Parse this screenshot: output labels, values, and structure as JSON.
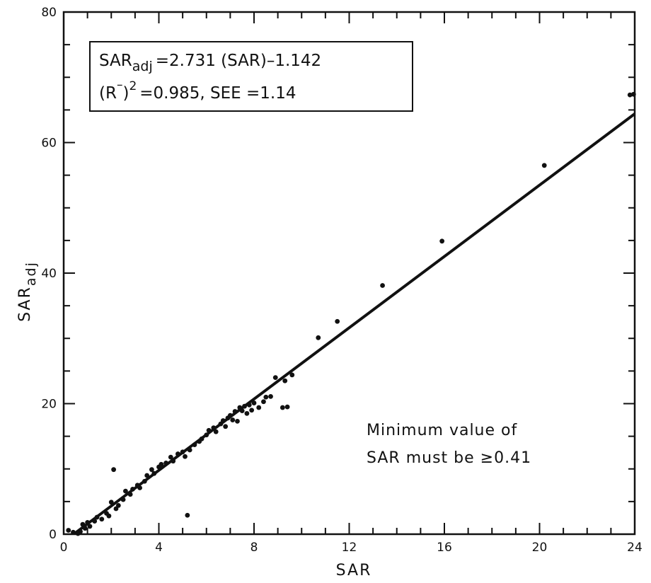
{
  "chart_data": {
    "type": "scatter",
    "title": "",
    "xlabel": "SAR",
    "ylabel_main": "SAR",
    "ylabel_sub": "adj",
    "xlim": [
      0,
      24
    ],
    "ylim": [
      0,
      80
    ],
    "x_ticks": [
      0,
      4,
      8,
      12,
      16,
      20,
      24
    ],
    "y_ticks": [
      0,
      20,
      40,
      60,
      80
    ],
    "x_tick_labels": [
      "0",
      "4",
      "8",
      "12",
      "16",
      "20",
      "24"
    ],
    "y_tick_labels": [
      "0",
      "20",
      "40",
      "60",
      "80"
    ],
    "grid": false,
    "regression": {
      "slope": 2.731,
      "intercept": -1.142,
      "x_range": [
        0.45,
        24
      ]
    },
    "equation_box": {
      "line1_lhs": "SAR",
      "line1_sub": "adj",
      "line1_rhs": "=2.731  (SAR)–1.142",
      "line2_lhs": "(R",
      "line2_bar": "–",
      "line2_mid": ")",
      "line2_sup": "2",
      "line2_rhs": "=0.985,  SEE =1.14"
    },
    "note_line1": "Minimum  value  of",
    "note_line2": "SAR  must  be  ≥0.41",
    "points": [
      [
        0.2,
        0.6
      ],
      [
        0.4,
        0.3
      ],
      [
        0.6,
        0.1
      ],
      [
        0.7,
        0.4
      ],
      [
        0.8,
        1.5
      ],
      [
        0.9,
        0.9
      ],
      [
        1.0,
        1.8
      ],
      [
        1.1,
        1.2
      ],
      [
        1.3,
        2.0
      ],
      [
        1.4,
        2.6
      ],
      [
        1.6,
        2.3
      ],
      [
        1.8,
        3.2
      ],
      [
        1.9,
        2.8
      ],
      [
        2.0,
        4.9
      ],
      [
        2.1,
        9.9
      ],
      [
        2.2,
        3.9
      ],
      [
        2.3,
        4.4
      ],
      [
        2.5,
        5.3
      ],
      [
        2.6,
        6.6
      ],
      [
        2.8,
        6.1
      ],
      [
        2.9,
        6.9
      ],
      [
        3.1,
        7.5
      ],
      [
        3.2,
        7.1
      ],
      [
        3.4,
        8.1
      ],
      [
        3.5,
        9.0
      ],
      [
        3.7,
        9.9
      ],
      [
        3.8,
        9.3
      ],
      [
        4.0,
        10.3
      ],
      [
        4.1,
        10.7
      ],
      [
        4.3,
        10.9
      ],
      [
        4.5,
        11.8
      ],
      [
        4.6,
        11.2
      ],
      [
        4.8,
        12.3
      ],
      [
        5.0,
        12.6
      ],
      [
        5.1,
        11.9
      ],
      [
        5.2,
        2.9
      ],
      [
        5.3,
        12.9
      ],
      [
        5.5,
        13.7
      ],
      [
        5.7,
        14.2
      ],
      [
        5.8,
        14.6
      ],
      [
        6.0,
        15.2
      ],
      [
        6.1,
        15.9
      ],
      [
        6.3,
        16.3
      ],
      [
        6.4,
        15.7
      ],
      [
        6.6,
        16.9
      ],
      [
        6.7,
        17.4
      ],
      [
        6.8,
        16.5
      ],
      [
        6.9,
        17.8
      ],
      [
        7.0,
        18.2
      ],
      [
        7.1,
        17.5
      ],
      [
        7.2,
        18.8
      ],
      [
        7.3,
        17.3
      ],
      [
        7.4,
        19.4
      ],
      [
        7.5,
        18.9
      ],
      [
        7.6,
        19.6
      ],
      [
        7.7,
        18.5
      ],
      [
        7.8,
        19.8
      ],
      [
        7.9,
        19.0
      ],
      [
        8.0,
        20.1
      ],
      [
        8.2,
        19.4
      ],
      [
        8.4,
        20.3
      ],
      [
        8.5,
        21.0
      ],
      [
        8.7,
        21.1
      ],
      [
        8.9,
        24.0
      ],
      [
        9.2,
        19.4
      ],
      [
        9.3,
        23.5
      ],
      [
        9.4,
        19.5
      ],
      [
        9.6,
        24.4
      ],
      [
        10.7,
        30.1
      ],
      [
        11.5,
        32.6
      ],
      [
        13.4,
        38.1
      ],
      [
        15.9,
        44.9
      ],
      [
        20.2,
        56.5
      ],
      [
        23.8,
        67.3
      ],
      [
        23.95,
        67.4
      ]
    ]
  }
}
